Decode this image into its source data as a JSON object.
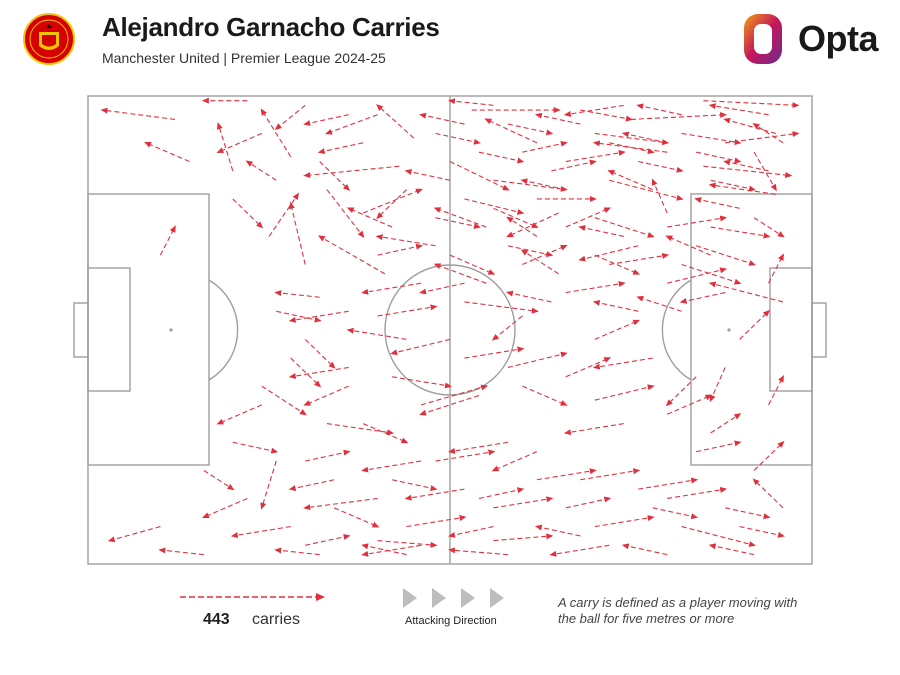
{
  "header": {
    "title": "Alejandro Garnacho Carries",
    "subtitle": "Manchester United | Premier League 2024-25",
    "brand": "Opta",
    "crest_icon": "manchester-united-crest-icon"
  },
  "colors": {
    "carry": "#e0303e",
    "pitch_lines": "#9e9e9e",
    "text": "#1a1a1a",
    "opta_orange": "#f39c12",
    "opta_magenta": "#c2185b",
    "opta_purple": "#6a2c91"
  },
  "legend": {
    "count": "443",
    "count_label": "carries",
    "direction_label": "Attacking Direction",
    "definition": "A carry is defined as a player moving with the ball for five metres or more"
  },
  "chart_data": {
    "type": "flow-map",
    "xlim": [
      0,
      100
    ],
    "ylim": [
      0,
      100
    ],
    "attacking_direction": "left-to-right",
    "total_carries": 443,
    "carries": [
      [
        22,
        1,
        16,
        1
      ],
      [
        12,
        5,
        2,
        3
      ],
      [
        30,
        2,
        26,
        7
      ],
      [
        40,
        4,
        33,
        8
      ],
      [
        45,
        9,
        40,
        2
      ],
      [
        53,
        3,
        65,
        3
      ],
      [
        68,
        3,
        75,
        5
      ],
      [
        75,
        5,
        88,
        4
      ],
      [
        70,
        8,
        80,
        10
      ],
      [
        85,
        1,
        98,
        2
      ],
      [
        95,
        8,
        88,
        5
      ],
      [
        88,
        10,
        98,
        8
      ],
      [
        80,
        12,
        70,
        10
      ],
      [
        62,
        10,
        55,
        5
      ],
      [
        50,
        14,
        58,
        20
      ],
      [
        43,
        15,
        30,
        17
      ],
      [
        33,
        20,
        38,
        30
      ],
      [
        28,
        13,
        24,
        3
      ],
      [
        20,
        16,
        18,
        6
      ],
      [
        56,
        18,
        66,
        20
      ],
      [
        62,
        22,
        70,
        22
      ],
      [
        72,
        18,
        82,
        22
      ],
      [
        85,
        15,
        97,
        17
      ],
      [
        92,
        12,
        95,
        20
      ],
      [
        95,
        21,
        86,
        19
      ],
      [
        80,
        25,
        78,
        18
      ],
      [
        65,
        25,
        58,
        30
      ],
      [
        55,
        28,
        48,
        24
      ],
      [
        48,
        32,
        40,
        30
      ],
      [
        41,
        38,
        32,
        30
      ],
      [
        30,
        36,
        28,
        23
      ],
      [
        25,
        30,
        29,
        21
      ],
      [
        38,
        25,
        46,
        20
      ],
      [
        52,
        22,
        60,
        25
      ],
      [
        70,
        26,
        78,
        30
      ],
      [
        76,
        32,
        68,
        35
      ],
      [
        65,
        38,
        60,
        33
      ],
      [
        55,
        40,
        48,
        36
      ],
      [
        46,
        40,
        38,
        42
      ],
      [
        32,
        43,
        26,
        42
      ],
      [
        26,
        46,
        32,
        48
      ],
      [
        40,
        47,
        48,
        45
      ],
      [
        52,
        44,
        62,
        46
      ],
      [
        66,
        42,
        74,
        40
      ],
      [
        80,
        40,
        88,
        37
      ],
      [
        84,
        32,
        92,
        36
      ],
      [
        60,
        47,
        56,
        52
      ],
      [
        50,
        52,
        42,
        55
      ],
      [
        36,
        58,
        28,
        60
      ],
      [
        24,
        62,
        30,
        68
      ],
      [
        33,
        70,
        42,
        72
      ],
      [
        46,
        66,
        55,
        62
      ],
      [
        58,
        58,
        66,
        55
      ],
      [
        70,
        52,
        76,
        48
      ],
      [
        82,
        46,
        76,
        43
      ],
      [
        60,
        62,
        66,
        66
      ],
      [
        70,
        65,
        78,
        62
      ],
      [
        84,
        60,
        80,
        66
      ],
      [
        74,
        70,
        66,
        72
      ],
      [
        58,
        74,
        50,
        76
      ],
      [
        46,
        78,
        38,
        80
      ],
      [
        34,
        82,
        28,
        84
      ],
      [
        22,
        86,
        16,
        90
      ],
      [
        10,
        92,
        3,
        95
      ],
      [
        16,
        80,
        20,
        84
      ],
      [
        26,
        78,
        24,
        88
      ],
      [
        34,
        88,
        40,
        92
      ],
      [
        44,
        92,
        52,
        90
      ],
      [
        56,
        88,
        64,
        86
      ],
      [
        68,
        82,
        76,
        80
      ],
      [
        80,
        86,
        88,
        84
      ],
      [
        84,
        76,
        90,
        74
      ],
      [
        92,
        80,
        96,
        74
      ],
      [
        94,
        66,
        96,
        60
      ],
      [
        88,
        58,
        86,
        65
      ],
      [
        90,
        52,
        94,
        46
      ],
      [
        96,
        44,
        86,
        40
      ],
      [
        78,
        56,
        70,
        58
      ],
      [
        62,
        76,
        56,
        80
      ],
      [
        52,
        84,
        44,
        86
      ],
      [
        40,
        86,
        30,
        88
      ],
      [
        28,
        92,
        20,
        94
      ],
      [
        40,
        95,
        48,
        96
      ],
      [
        56,
        95,
        64,
        94
      ],
      [
        70,
        92,
        78,
        90
      ],
      [
        82,
        92,
        92,
        96
      ],
      [
        72,
        96,
        64,
        98
      ],
      [
        58,
        98,
        50,
        97
      ],
      [
        46,
        96,
        38,
        98
      ],
      [
        30,
        96,
        36,
        94
      ],
      [
        16,
        98,
        10,
        97
      ],
      [
        42,
        60,
        50,
        62
      ],
      [
        54,
        64,
        46,
        68
      ],
      [
        38,
        70,
        44,
        74
      ],
      [
        48,
        78,
        56,
        76
      ],
      [
        62,
        82,
        70,
        80
      ],
      [
        76,
        84,
        84,
        82
      ],
      [
        88,
        88,
        94,
        90
      ],
      [
        96,
        88,
        92,
        82
      ],
      [
        86,
        72,
        90,
        68
      ],
      [
        80,
        68,
        86,
        64
      ],
      [
        66,
        60,
        72,
        56
      ],
      [
        52,
        56,
        60,
        54
      ],
      [
        44,
        52,
        36,
        50
      ],
      [
        30,
        52,
        34,
        58
      ],
      [
        36,
        62,
        30,
        66
      ],
      [
        40,
        34,
        46,
        32
      ],
      [
        50,
        34,
        56,
        38
      ],
      [
        60,
        36,
        66,
        32
      ],
      [
        72,
        36,
        80,
        34
      ],
      [
        86,
        28,
        94,
        30
      ],
      [
        90,
        24,
        84,
        22
      ],
      [
        78,
        20,
        72,
        16
      ],
      [
        66,
        14,
        74,
        12
      ],
      [
        82,
        8,
        90,
        10
      ],
      [
        94,
        4,
        86,
        2
      ],
      [
        74,
        2,
        66,
        4
      ],
      [
        58,
        6,
        64,
        8
      ],
      [
        52,
        6,
        46,
        4
      ],
      [
        36,
        4,
        30,
        6
      ],
      [
        24,
        8,
        18,
        12
      ],
      [
        14,
        14,
        8,
        10
      ],
      [
        20,
        22,
        24,
        28
      ],
      [
        10,
        34,
        12,
        28
      ],
      [
        32,
        14,
        36,
        20
      ],
      [
        44,
        20,
        40,
        26
      ],
      [
        56,
        24,
        62,
        28
      ],
      [
        66,
        28,
        72,
        24
      ],
      [
        80,
        28,
        88,
        26
      ],
      [
        92,
        26,
        96,
        30
      ],
      [
        86,
        34,
        80,
        30
      ],
      [
        74,
        30,
        68,
        28
      ],
      [
        62,
        30,
        58,
        26
      ],
      [
        54,
        12,
        60,
        14
      ],
      [
        64,
        16,
        70,
        14
      ],
      [
        76,
        14,
        82,
        16
      ],
      [
        86,
        18,
        92,
        20
      ],
      [
        94,
        16,
        88,
        14
      ],
      [
        80,
        10,
        74,
        8
      ],
      [
        68,
        6,
        62,
        4
      ],
      [
        56,
        2,
        50,
        1
      ],
      [
        48,
        8,
        54,
        10
      ],
      [
        60,
        12,
        66,
        10
      ],
      [
        72,
        10,
        78,
        12
      ],
      [
        84,
        12,
        90,
        14
      ],
      [
        96,
        10,
        92,
        6
      ],
      [
        82,
        4,
        76,
        2
      ],
      [
        66,
        20,
        60,
        18
      ],
      [
        50,
        18,
        44,
        16
      ],
      [
        38,
        10,
        32,
        12
      ],
      [
        26,
        18,
        22,
        14
      ],
      [
        42,
        28,
        36,
        24
      ],
      [
        48,
        26,
        54,
        28
      ],
      [
        58,
        32,
        64,
        34
      ],
      [
        70,
        34,
        76,
        38
      ],
      [
        82,
        36,
        90,
        40
      ],
      [
        94,
        40,
        96,
        34
      ],
      [
        88,
        42,
        82,
        44
      ],
      [
        76,
        46,
        70,
        44
      ],
      [
        64,
        44,
        58,
        42
      ],
      [
        52,
        40,
        46,
        42
      ],
      [
        36,
        46,
        28,
        48
      ],
      [
        28,
        56,
        32,
        62
      ],
      [
        24,
        66,
        18,
        70
      ],
      [
        20,
        74,
        26,
        76
      ],
      [
        30,
        78,
        36,
        76
      ],
      [
        42,
        82,
        48,
        84
      ],
      [
        54,
        86,
        60,
        84
      ],
      [
        66,
        88,
        72,
        86
      ],
      [
        78,
        88,
        84,
        90
      ],
      [
        90,
        92,
        96,
        94
      ],
      [
        92,
        98,
        86,
        96
      ],
      [
        80,
        98,
        74,
        96
      ],
      [
        68,
        94,
        62,
        92
      ],
      [
        56,
        92,
        50,
        94
      ],
      [
        44,
        98,
        38,
        96
      ],
      [
        32,
        98,
        26,
        97
      ]
    ]
  }
}
